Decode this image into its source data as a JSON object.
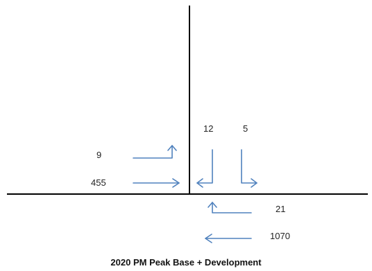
{
  "caption": "2020 PM Peak Base + Development",
  "colors": {
    "road": "#000000",
    "arrow": "#4f81bd",
    "text": "#222222"
  },
  "movements": {
    "west_left": "9",
    "west_through": "455",
    "south_left": "12",
    "south_right": "5",
    "east_right": "21",
    "east_through": "1070"
  }
}
